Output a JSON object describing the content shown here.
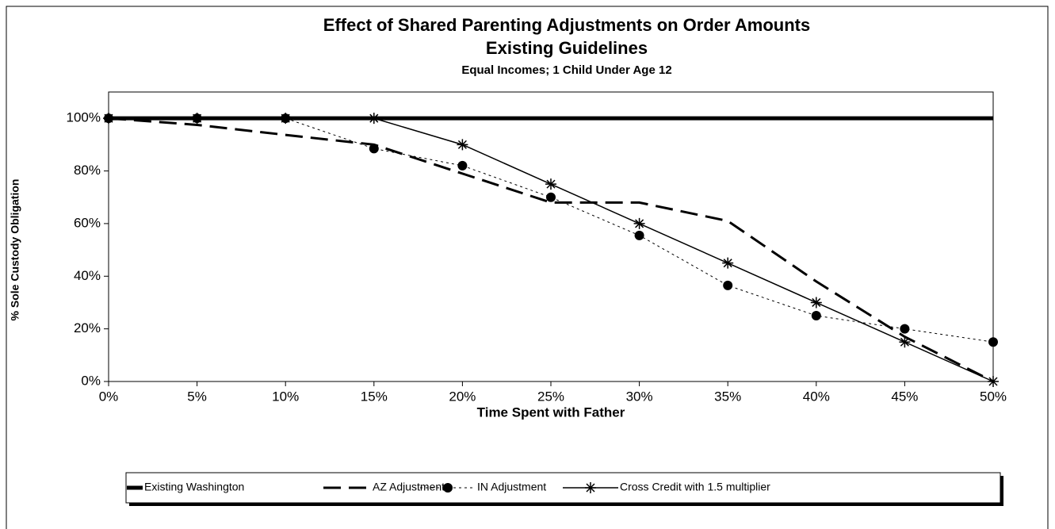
{
  "chart_data": {
    "type": "line",
    "title": "Effect of Shared Parenting Adjustments on Order Amounts",
    "subtitle": "Existing Guidelines",
    "subtitle2": "Equal Incomes; 1 Child Under Age 12",
    "x_label": "Time Spent with Father",
    "y_label": "% Sole Custody Obligation",
    "x": [
      0,
      5,
      10,
      15,
      20,
      25,
      30,
      35,
      40,
      45,
      50
    ],
    "xlim": [
      0,
      50
    ],
    "xticks": [
      {
        "value": 0,
        "label": "0%"
      },
      {
        "value": 5,
        "label": "5%"
      },
      {
        "value": 10,
        "label": "10%"
      },
      {
        "value": 15,
        "label": "15%"
      },
      {
        "value": 20,
        "label": "20%"
      },
      {
        "value": 25,
        "label": "25%"
      },
      {
        "value": 30,
        "label": "30%"
      },
      {
        "value": 35,
        "label": "35%"
      },
      {
        "value": 40,
        "label": "40%"
      },
      {
        "value": 45,
        "label": "45%"
      },
      {
        "value": 50,
        "label": "50%"
      }
    ],
    "ylim": [
      0,
      110
    ],
    "yticks": [
      {
        "value": 0,
        "label": "0%"
      },
      {
        "value": 20,
        "label": "20%"
      },
      {
        "value": 40,
        "label": "40%"
      },
      {
        "value": 60,
        "label": "60%"
      },
      {
        "value": 80,
        "label": "80%"
      },
      {
        "value": 100,
        "label": "100%"
      }
    ],
    "legend": "bottom",
    "series": [
      {
        "name": "Existing Washington",
        "color": "#000000",
        "line_width": 5,
        "dash": "solid",
        "marker": "none",
        "values": [
          100,
          100,
          100,
          100,
          100,
          100,
          100,
          100,
          100,
          100,
          100
        ]
      },
      {
        "name": "AZ Adjustment",
        "color": "#000000",
        "line_width": 3,
        "dash": "dashed",
        "marker": "none",
        "values": [
          100,
          97.5,
          93.7,
          90,
          79,
          68,
          68,
          61,
          38,
          17,
          0
        ]
      },
      {
        "name": "IN Adjustment",
        "color": "#000000",
        "line_width": 1,
        "dash": "dotted",
        "marker": "circle",
        "values": [
          100,
          100,
          100,
          88.5,
          82,
          70,
          55.5,
          36.5,
          25,
          20,
          15
        ]
      },
      {
        "name": "Cross Credit with 1.5 multiplier",
        "color": "#000000",
        "line_width": 1.5,
        "dash": "solid",
        "marker": "star",
        "values": [
          100,
          100,
          100,
          100,
          90,
          75,
          60,
          45,
          30,
          15,
          0
        ]
      }
    ]
  }
}
